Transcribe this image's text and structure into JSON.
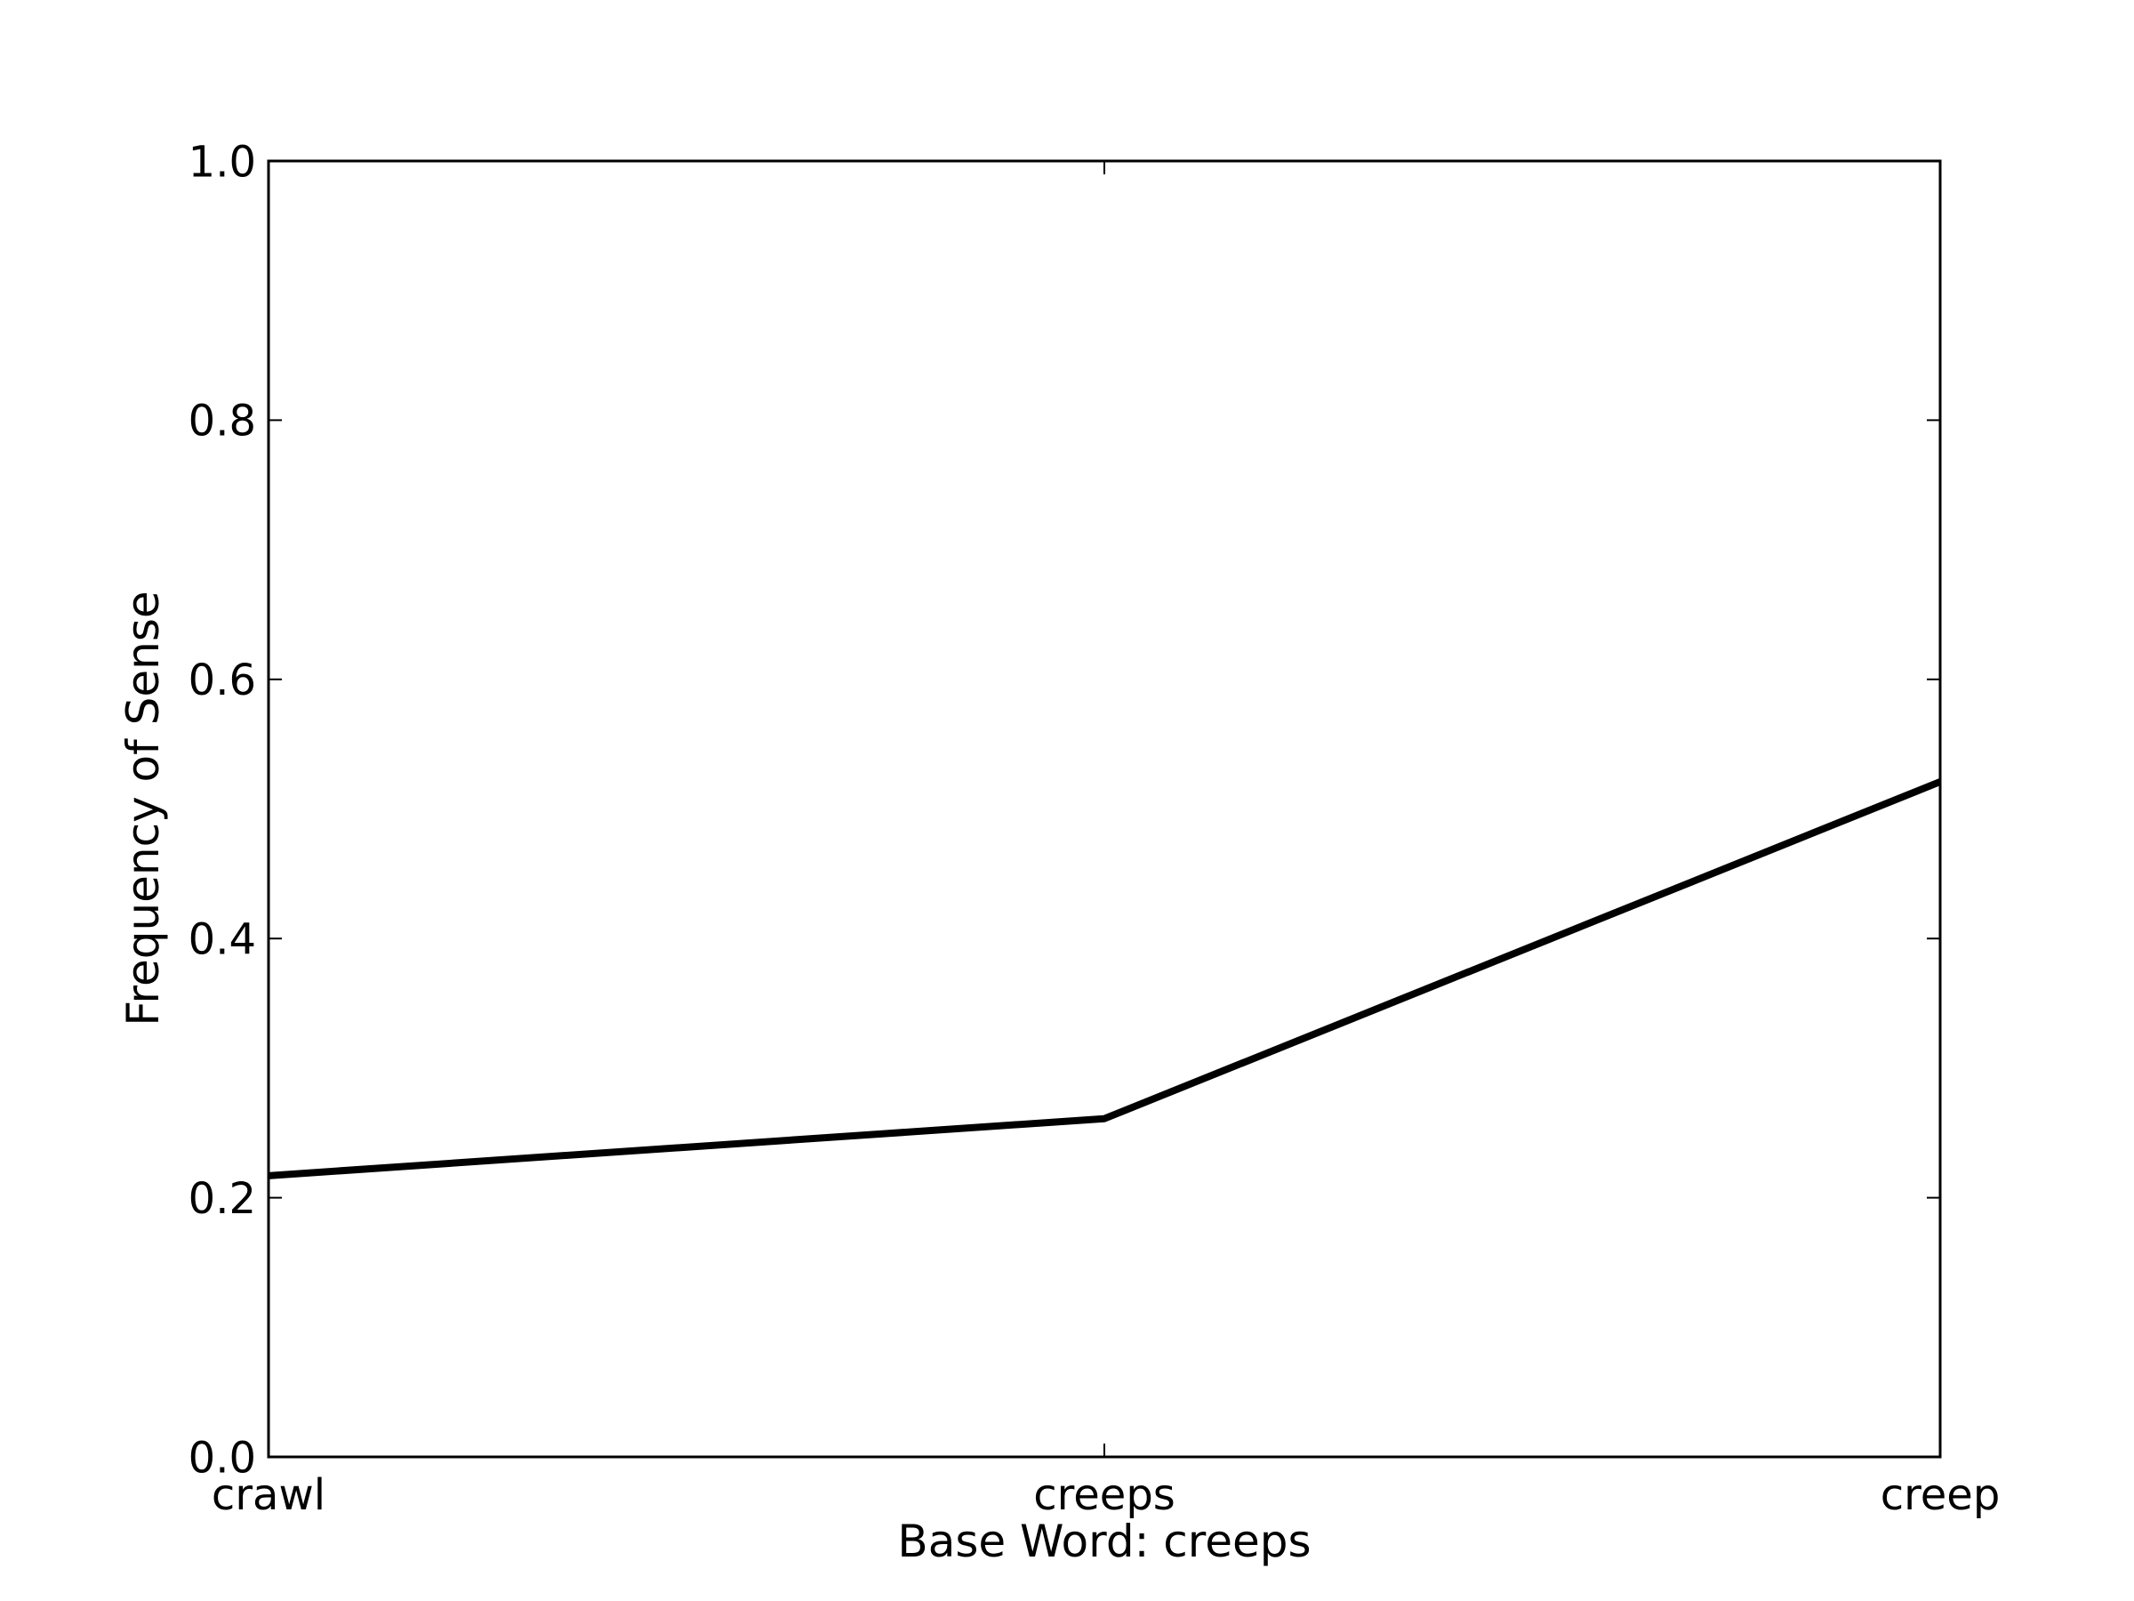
{
  "chart_data": {
    "type": "line",
    "title": "",
    "xlabel": "Base Word: creeps",
    "ylabel": "Frequency of Sense",
    "categories": [
      "crawl",
      "creeps",
      "creep"
    ],
    "series": [
      {
        "values": [
          0.217,
          0.261,
          0.521
        ]
      }
    ],
    "ylim": [
      0,
      1.0
    ],
    "yticks": [
      "0.0",
      "0.2",
      "0.4",
      "0.6",
      "0.8",
      "1.0"
    ],
    "ytick_values": [
      0,
      0.2,
      0.4,
      0.6,
      0.8,
      1.0
    ],
    "grid": false,
    "legend": "none",
    "line_color": "#000000"
  }
}
